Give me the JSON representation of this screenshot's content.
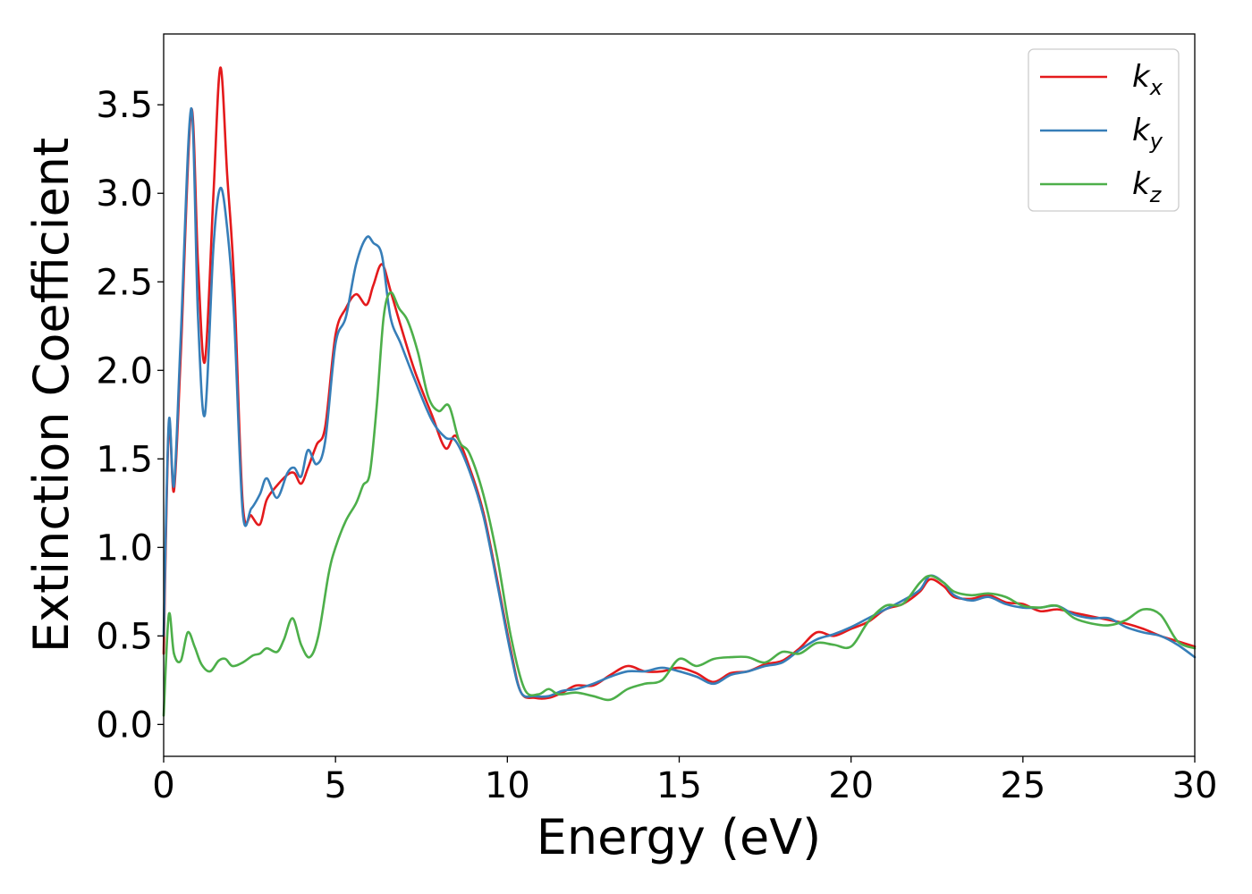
{
  "chart_data": {
    "type": "line",
    "title": "",
    "xlabel": "Energy (eV)",
    "ylabel": "Extinction Coefficient",
    "xlim": [
      0,
      30
    ],
    "ylim": [
      -0.18,
      3.9
    ],
    "xticks": [
      0,
      5,
      10,
      15,
      20,
      25,
      30
    ],
    "xtick_labels": [
      "0",
      "5",
      "10",
      "15",
      "20",
      "25",
      "30"
    ],
    "yticks": [
      0.0,
      0.5,
      1.0,
      1.5,
      2.0,
      2.5,
      3.0,
      3.5
    ],
    "ytick_labels": [
      "0.0",
      "0.5",
      "1.0",
      "1.5",
      "2.0",
      "2.5",
      "3.0",
      "3.5"
    ],
    "grid": false,
    "legend_position": "top-right",
    "series": [
      {
        "name": "k_x",
        "label_base": "k",
        "label_sub": "x",
        "color": "#e41a1c",
        "x": [
          0,
          0.15,
          0.3,
          0.5,
          0.8,
          1.0,
          1.2,
          1.45,
          1.65,
          1.85,
          2.05,
          2.3,
          2.55,
          2.8,
          3.0,
          3.3,
          3.6,
          3.8,
          4.0,
          4.2,
          4.45,
          4.7,
          5.0,
          5.3,
          5.6,
          5.9,
          6.1,
          6.35,
          6.6,
          6.9,
          7.3,
          7.8,
          8.2,
          8.5,
          8.9,
          9.3,
          9.7,
          10.1,
          10.4,
          10.8,
          11.2,
          11.6,
          12.0,
          12.5,
          13.0,
          13.5,
          14.0,
          14.5,
          15.0,
          15.5,
          16.0,
          16.5,
          17.0,
          17.5,
          18.0,
          18.5,
          19.0,
          19.5,
          20.0,
          20.5,
          21.0,
          21.5,
          22.0,
          22.3,
          22.7,
          23.0,
          23.5,
          24.0,
          24.5,
          25.0,
          25.5,
          26.0,
          26.5,
          27.0,
          27.5,
          28.0,
          28.5,
          29.0,
          29.5,
          30.0
        ],
        "y": [
          0.4,
          1.68,
          1.32,
          2.1,
          3.47,
          2.6,
          2.05,
          3.0,
          3.71,
          3.1,
          2.5,
          1.25,
          1.18,
          1.13,
          1.27,
          1.35,
          1.41,
          1.42,
          1.36,
          1.45,
          1.58,
          1.68,
          2.2,
          2.35,
          2.43,
          2.37,
          2.48,
          2.6,
          2.45,
          2.25,
          2.0,
          1.75,
          1.56,
          1.63,
          1.45,
          1.2,
          0.82,
          0.42,
          0.18,
          0.15,
          0.15,
          0.18,
          0.22,
          0.22,
          0.28,
          0.33,
          0.3,
          0.3,
          0.32,
          0.29,
          0.24,
          0.29,
          0.3,
          0.34,
          0.36,
          0.43,
          0.52,
          0.5,
          0.54,
          0.58,
          0.65,
          0.68,
          0.75,
          0.82,
          0.78,
          0.72,
          0.71,
          0.73,
          0.69,
          0.68,
          0.64,
          0.65,
          0.63,
          0.61,
          0.59,
          0.57,
          0.54,
          0.5,
          0.47,
          0.44
        ]
      },
      {
        "name": "k_y",
        "label_base": "k",
        "label_sub": "y",
        "color": "#377eb8",
        "x": [
          0,
          0.15,
          0.3,
          0.5,
          0.8,
          1.0,
          1.2,
          1.45,
          1.65,
          1.85,
          2.05,
          2.3,
          2.55,
          2.8,
          3.0,
          3.3,
          3.6,
          3.8,
          4.0,
          4.2,
          4.45,
          4.7,
          5.0,
          5.3,
          5.6,
          5.9,
          6.1,
          6.35,
          6.6,
          6.9,
          7.3,
          7.8,
          8.2,
          8.5,
          8.9,
          9.3,
          9.7,
          10.1,
          10.4,
          10.8,
          11.2,
          11.6,
          12.0,
          12.5,
          13.0,
          13.5,
          14.0,
          14.5,
          15.0,
          15.5,
          16.0,
          16.5,
          17.0,
          17.5,
          18.0,
          18.5,
          19.0,
          19.5,
          20.0,
          20.5,
          21.0,
          21.5,
          22.0,
          22.3,
          22.7,
          23.0,
          23.5,
          24.0,
          24.5,
          25.0,
          25.5,
          26.0,
          26.5,
          27.0,
          27.5,
          28.0,
          28.5,
          29.0,
          29.5,
          30.0
        ],
        "y": [
          0.5,
          1.71,
          1.35,
          2.2,
          3.48,
          2.3,
          1.75,
          2.7,
          3.03,
          2.8,
          2.3,
          1.2,
          1.22,
          1.3,
          1.39,
          1.28,
          1.42,
          1.45,
          1.4,
          1.55,
          1.47,
          1.6,
          2.15,
          2.3,
          2.6,
          2.75,
          2.72,
          2.65,
          2.3,
          2.15,
          1.95,
          1.72,
          1.62,
          1.6,
          1.43,
          1.18,
          0.8,
          0.4,
          0.18,
          0.16,
          0.16,
          0.19,
          0.2,
          0.23,
          0.27,
          0.3,
          0.3,
          0.32,
          0.3,
          0.27,
          0.23,
          0.28,
          0.3,
          0.33,
          0.35,
          0.42,
          0.48,
          0.51,
          0.55,
          0.6,
          0.65,
          0.7,
          0.76,
          0.84,
          0.8,
          0.73,
          0.7,
          0.72,
          0.68,
          0.66,
          0.66,
          0.67,
          0.62,
          0.6,
          0.6,
          0.55,
          0.52,
          0.5,
          0.45,
          0.38
        ]
      },
      {
        "name": "k_z",
        "label_base": "k",
        "label_sub": "z",
        "color": "#4daf4a",
        "x": [
          0,
          0.15,
          0.3,
          0.5,
          0.7,
          0.9,
          1.1,
          1.35,
          1.6,
          1.8,
          2.0,
          2.3,
          2.6,
          2.8,
          3.0,
          3.3,
          3.5,
          3.75,
          4.0,
          4.25,
          4.5,
          4.8,
          5.0,
          5.3,
          5.6,
          5.8,
          6.0,
          6.2,
          6.4,
          6.6,
          6.85,
          7.1,
          7.4,
          7.7,
          8.0,
          8.3,
          8.6,
          8.9,
          9.3,
          9.7,
          10.1,
          10.5,
          10.9,
          11.2,
          11.5,
          12.0,
          12.5,
          13.0,
          13.5,
          14.0,
          14.5,
          15.0,
          15.5,
          16.0,
          16.5,
          17.0,
          17.5,
          18.0,
          18.5,
          19.0,
          19.5,
          20.0,
          20.5,
          21.0,
          21.5,
          22.0,
          22.3,
          22.7,
          23.0,
          23.5,
          24.0,
          24.5,
          25.0,
          25.5,
          26.0,
          26.5,
          27.0,
          27.5,
          28.0,
          28.5,
          29.0,
          29.5,
          30.0
        ],
        "y": [
          0.05,
          0.62,
          0.4,
          0.36,
          0.52,
          0.44,
          0.34,
          0.3,
          0.36,
          0.37,
          0.33,
          0.35,
          0.39,
          0.4,
          0.43,
          0.41,
          0.48,
          0.6,
          0.45,
          0.38,
          0.5,
          0.85,
          1.0,
          1.15,
          1.25,
          1.35,
          1.42,
          1.8,
          2.3,
          2.44,
          2.35,
          2.28,
          2.1,
          1.85,
          1.77,
          1.8,
          1.6,
          1.53,
          1.3,
          0.95,
          0.5,
          0.2,
          0.17,
          0.2,
          0.17,
          0.18,
          0.16,
          0.14,
          0.2,
          0.23,
          0.25,
          0.37,
          0.33,
          0.37,
          0.38,
          0.38,
          0.35,
          0.41,
          0.4,
          0.46,
          0.45,
          0.44,
          0.58,
          0.67,
          0.68,
          0.8,
          0.84,
          0.8,
          0.75,
          0.73,
          0.74,
          0.72,
          0.67,
          0.66,
          0.67,
          0.6,
          0.57,
          0.56,
          0.59,
          0.65,
          0.62,
          0.47,
          0.43
        ]
      }
    ]
  }
}
